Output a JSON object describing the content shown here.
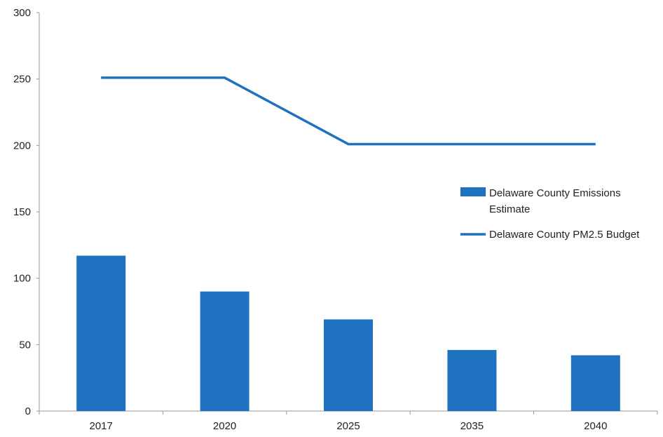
{
  "chart_data": {
    "type": "bar",
    "categories": [
      "2017",
      "2020",
      "2025",
      "2035",
      "2040"
    ],
    "series": [
      {
        "name": "Delaware County Emissions Estimate",
        "kind": "bar",
        "values": [
          117,
          90,
          69,
          46,
          42
        ],
        "color": "#1f72c0"
      },
      {
        "name": "Delaware County PM2.5 Budget",
        "kind": "line",
        "values": [
          251,
          251,
          201,
          201,
          201
        ],
        "color": "#1f72c0"
      }
    ],
    "ylim": [
      0,
      300
    ],
    "yticks": [
      "0",
      "50",
      "100",
      "150",
      "200",
      "250",
      "300"
    ],
    "legend": {
      "position": "right",
      "entries": [
        {
          "lines": [
            "Delaware County Emissions",
            "Estimate"
          ]
        },
        {
          "lines": [
            "Delaware County PM2.5 Budget"
          ]
        }
      ]
    },
    "grid": false,
    "title": "",
    "xlabel": "",
    "ylabel": ""
  }
}
